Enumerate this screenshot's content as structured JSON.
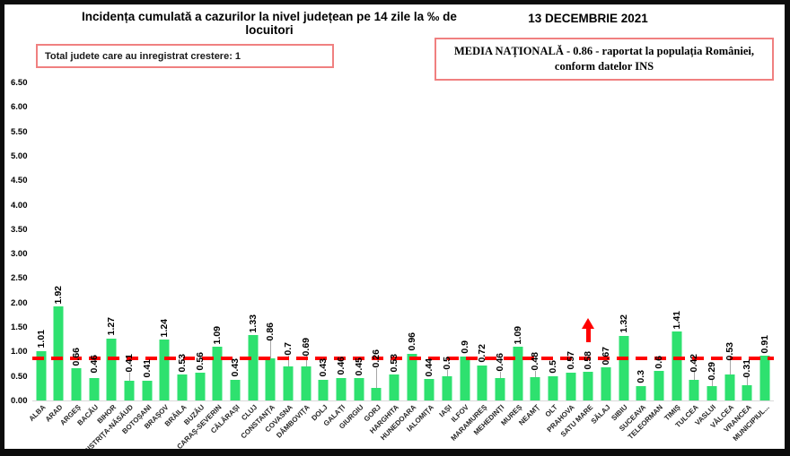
{
  "header": {
    "title": "Incidența cumulată a cazurilor la nivel județean pe 14 zile la ‰ de locuitori",
    "date": "13 DECEMBRIE 2021"
  },
  "boxes": {
    "growth_total": "Total judete care au inregistrat crestere: 1",
    "media_line1": "MEDIA NAȚIONALĂ - 0.86 -  raportat la populația  României,",
    "media_line2": "conform datelor INS"
  },
  "chart_data": {
    "type": "bar",
    "title": "Incidența cumulată a cazurilor la nivel județean pe 14 zile la ‰ de locuitori",
    "xlabel": "",
    "ylabel": "",
    "ylim": [
      0,
      6.5
    ],
    "ytick_step": 0.5,
    "ytick_labels": [
      "0.00",
      "0.50",
      "1.00",
      "1.50",
      "2.00",
      "2.50",
      "3.00",
      "3.50",
      "4.00",
      "4.50",
      "5.00",
      "5.50",
      "6.00",
      "6.50"
    ],
    "grid": false,
    "legend": false,
    "bar_color": "#2ee16f",
    "average_line_color": "#ff0000",
    "national_average": 0.86,
    "highlight_index": 31,
    "highlight_category": "SATU MARE",
    "highlight_marker": "red-up-arrow",
    "categories": [
      "ALBA",
      "ARAD",
      "ARGEȘ",
      "BACĂU",
      "BIHOR",
      "BISTRIȚA-NĂSĂUD",
      "BOTOȘANI",
      "BRAȘOV",
      "BRĂILA",
      "BUZĂU",
      "CARAȘ-SEVERIN",
      "CĂLĂRAȘI",
      "CLUJ",
      "CONSTANȚA",
      "COVASNA",
      "DÂMBOVIȚA",
      "DOLJ",
      "GALAȚI",
      "GIURGIU",
      "GORJ",
      "HARGHITA",
      "HUNEDOARA",
      "IALOMIȚA",
      "IAȘI",
      "ILFOV",
      "MARAMUREȘ",
      "MEHEDINȚI",
      "MUREȘ",
      "NEAMȚ",
      "OLT",
      "PRAHOVA",
      "SATU MARE",
      "SĂLAJ",
      "SIBIU",
      "SUCEAVA",
      "TELEORMAN",
      "TIMIȘ",
      "TULCEA",
      "VASLUI",
      "VÂLCEA",
      "VRANCEA",
      "MUNICIPIUL..."
    ],
    "values": [
      1.01,
      1.92,
      0.66,
      0.46,
      1.27,
      0.41,
      0.41,
      1.24,
      0.53,
      0.56,
      1.09,
      0.43,
      1.33,
      0.86,
      0.7,
      0.69,
      0.43,
      0.46,
      0.45,
      0.26,
      0.53,
      0.96,
      0.44,
      0.5,
      0.9,
      0.72,
      0.46,
      1.09,
      0.48,
      0.5,
      0.57,
      0.58,
      0.67,
      1.32,
      0.3,
      0.6,
      1.41,
      0.42,
      0.29,
      0.53,
      0.31,
      0.91
    ],
    "value_labels": [
      "1.01",
      "1.92",
      "0.66",
      "0.46",
      "1.27",
      "0.41",
      "0.41",
      "1.24",
      "0.53",
      "0.56",
      "1.09",
      "0.43",
      "1.33",
      "0.86",
      "0.7",
      "0.69",
      "0.43",
      "0.46",
      "0.45",
      "0.26",
      "0.53",
      "0.96",
      "0.44",
      "0.5",
      "0.9",
      "0.72",
      "0.46",
      "1.09",
      "0.48",
      "0.5",
      "0.57",
      "0.58",
      "0.67",
      "1.32",
      "0.3",
      "0.6",
      "1.41",
      "0.42",
      "0.29",
      "0.53",
      "0.31",
      "0.91"
    ],
    "label_offsets": {
      "3": 5,
      "5": 9,
      "13": 20,
      "14": 12,
      "15": 12,
      "19": 22,
      "23": 7,
      "26": 7,
      "28": 7,
      "37": 9,
      "38": 7,
      "39": 16,
      "40": 9
    }
  }
}
